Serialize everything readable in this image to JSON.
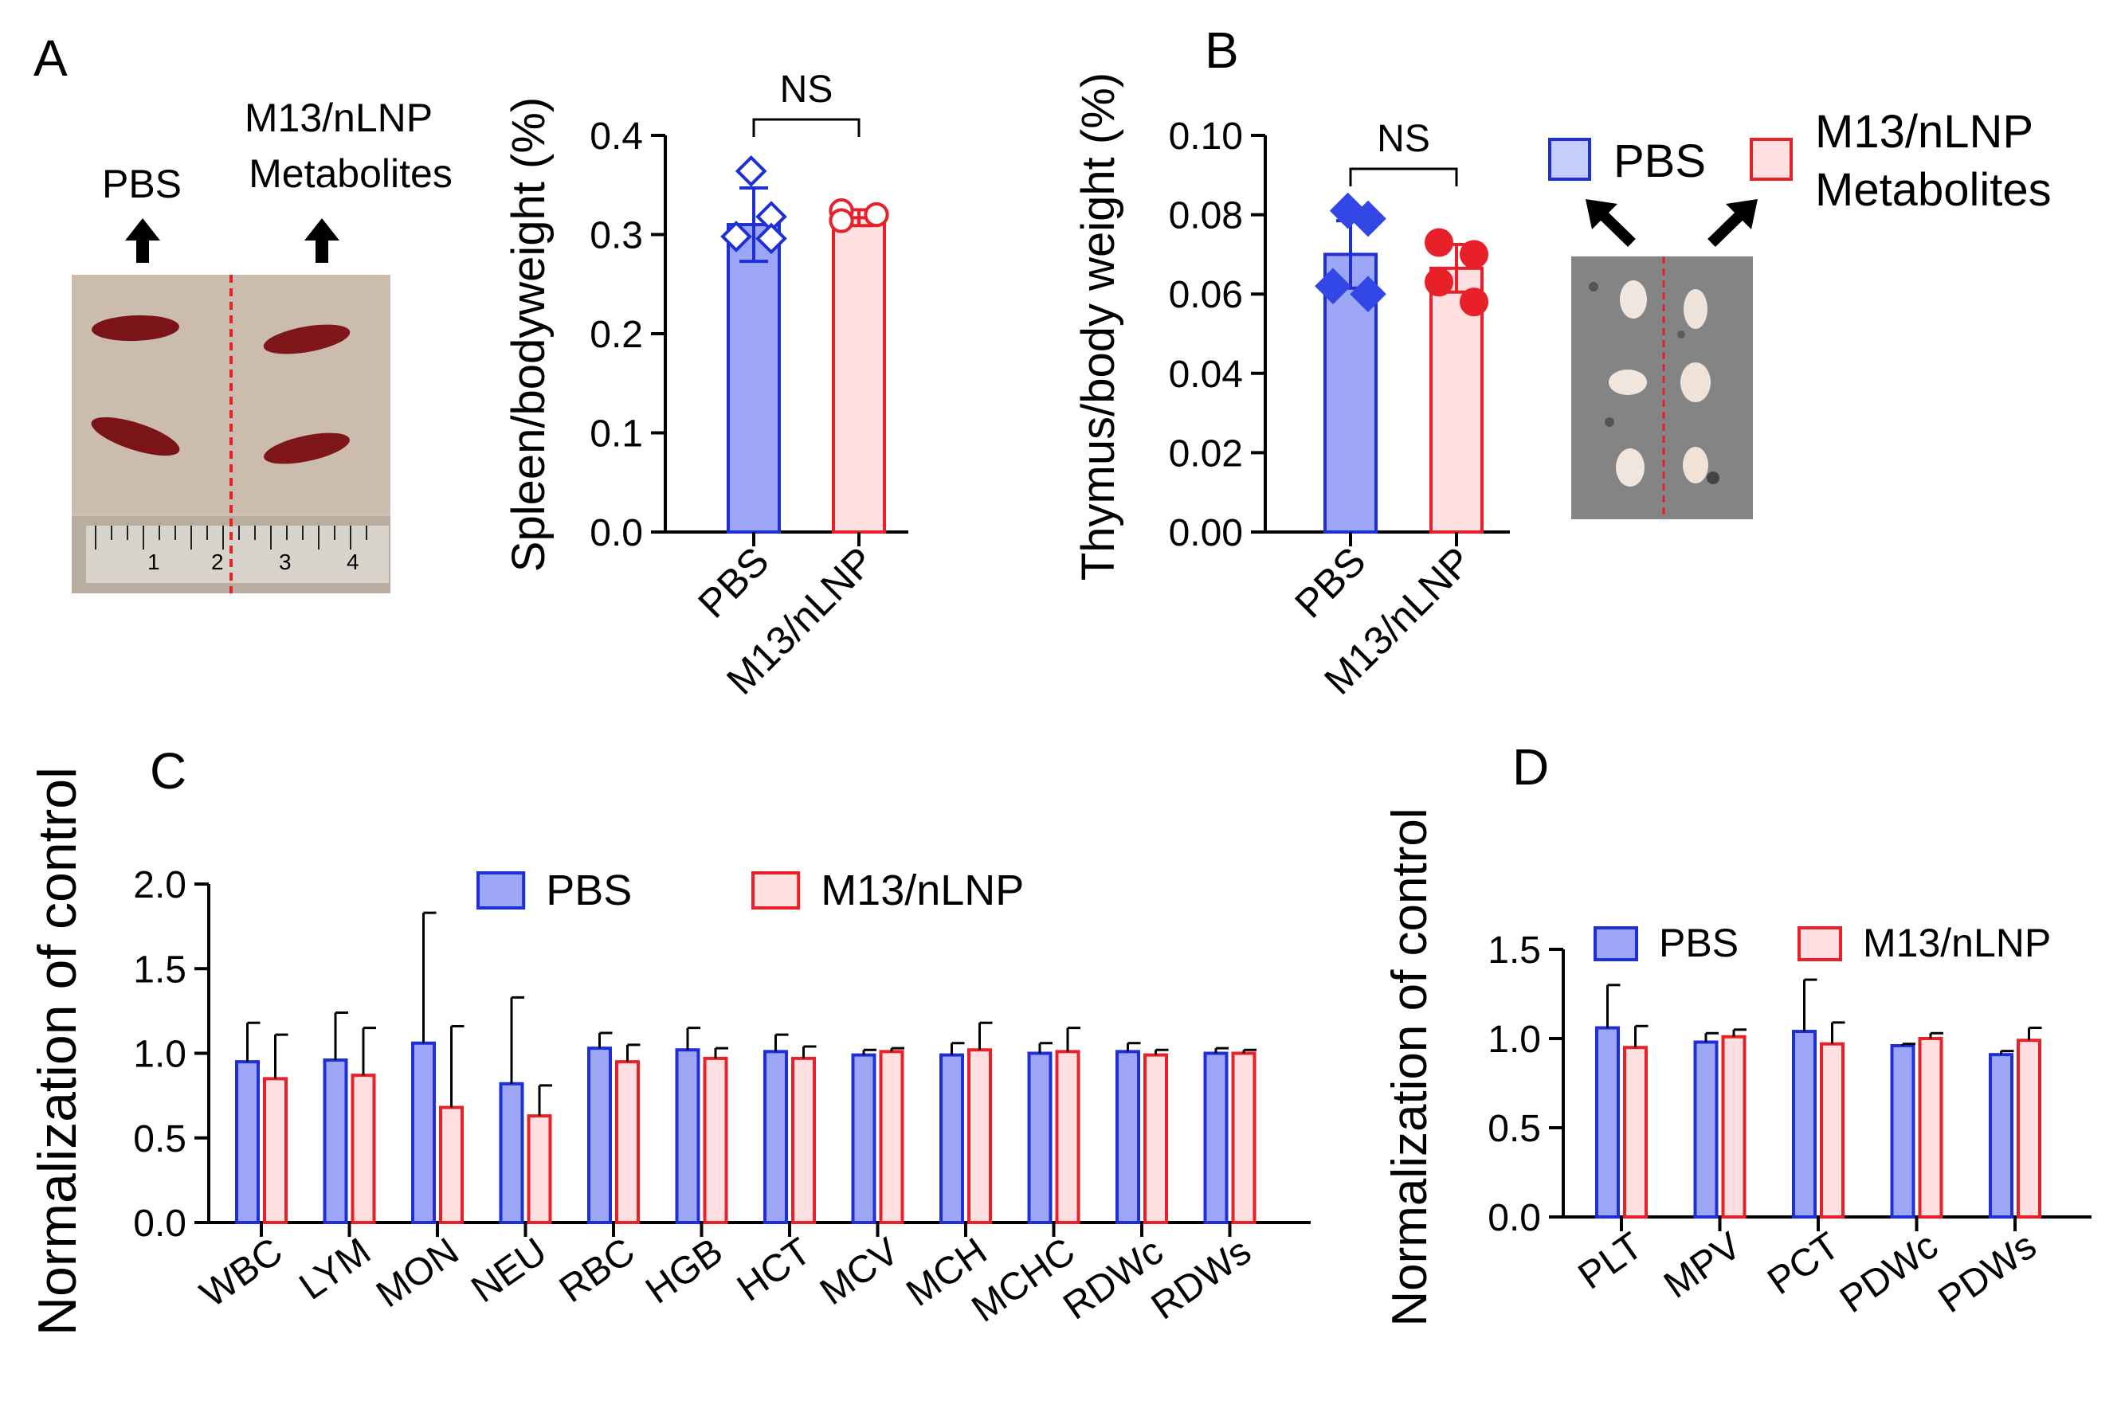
{
  "colors": {
    "pbs_fill": "#9da6f5",
    "pbs_stroke": "#1f2fd6",
    "m13_fill": "#ffe0e0",
    "m13_stroke": "#e8202a",
    "pbs_marker": "#3346e6",
    "m13_marker": "#e8202a",
    "divider": "#e8202a"
  },
  "panel_a": {
    "letter": "A",
    "photo_label_left": "PBS",
    "photo_label_right_1": "M13/nLNP",
    "photo_label_right_2": "Metabolites",
    "ruler_ticks": [
      "1",
      "2",
      "3",
      "4"
    ],
    "photo_icon": "spleen-photo"
  },
  "panel_b": {
    "letter": "B",
    "legend_pbs": "PBS",
    "legend_m13_1": "M13/nLNP",
    "legend_m13_2": "Metabolites",
    "photo_icon": "thymus-photo"
  },
  "panel_c": {
    "letter": "C"
  },
  "panel_d": {
    "letter": "D"
  },
  "chart_data": [
    {
      "id": "spleen",
      "type": "bar",
      "ylabel": "Spleen/bodyweight (%)",
      "categories": [
        "PBS",
        "M13/nLNP"
      ],
      "values": [
        0.31,
        0.317
      ],
      "sd": [
        0.037,
        0.008
      ],
      "points": [
        [
          0.364,
          0.318,
          0.298,
          0.296
        ],
        [
          0.324,
          0.32,
          0.314,
          0.32
        ]
      ],
      "markers": [
        "diamond",
        "circle"
      ],
      "ylim": [
        0,
        0.4
      ],
      "yticks": [
        "0.0",
        "0.1",
        "0.2",
        "0.3",
        "0.4"
      ],
      "significance": "NS"
    },
    {
      "id": "thymus",
      "type": "bar",
      "ylabel": "Thymus/body weight (%)",
      "categories": [
        "PBS",
        "M13/nLNP"
      ],
      "values": [
        0.07,
        0.0665
      ],
      "sd": [
        0.0085,
        0.006
      ],
      "points": [
        [
          0.081,
          0.079,
          0.062,
          0.06
        ],
        [
          0.073,
          0.07,
          0.063,
          0.058
        ]
      ],
      "markers": [
        "diamond",
        "circle"
      ],
      "ylim": [
        0,
        0.1
      ],
      "yticks": [
        "0.00",
        "0.02",
        "0.04",
        "0.06",
        "0.08",
        "0.10"
      ],
      "significance": "NS"
    },
    {
      "id": "blood",
      "type": "bar",
      "ylabel": "Normalization of control",
      "categories": [
        "WBC",
        "LYM",
        "MON",
        "NEU",
        "RBC",
        "HGB",
        "HCT",
        "MCV",
        "MCH",
        "MCHC",
        "RDWc",
        "RDWs"
      ],
      "series": [
        {
          "name": "PBS",
          "values": [
            0.95,
            0.96,
            1.06,
            0.82,
            1.03,
            1.02,
            1.01,
            0.99,
            0.99,
            1.0,
            1.01,
            1.0
          ],
          "sd": [
            0.23,
            0.28,
            0.77,
            0.51,
            0.09,
            0.13,
            0.1,
            0.03,
            0.07,
            0.06,
            0.05,
            0.03
          ]
        },
        {
          "name": "M13/nLNP",
          "values": [
            0.85,
            0.87,
            0.68,
            0.63,
            0.95,
            0.97,
            0.97,
            1.01,
            1.02,
            1.01,
            0.99,
            1.0
          ],
          "sd": [
            0.26,
            0.28,
            0.48,
            0.18,
            0.1,
            0.06,
            0.07,
            0.02,
            0.16,
            0.14,
            0.03,
            0.02
          ]
        }
      ],
      "ylim": [
        0,
        2.0
      ],
      "yticks": [
        "0.0",
        "0.5",
        "1.0",
        "1.5",
        "2.0"
      ],
      "legend": [
        "PBS",
        "M13/nLNP"
      ]
    },
    {
      "id": "platelet",
      "type": "bar",
      "ylabel": "Normalization of control",
      "categories": [
        "PLT",
        "MPV",
        "PCT",
        "PDWc",
        "PDWs"
      ],
      "series": [
        {
          "name": "PBS",
          "values": [
            1.06,
            0.98,
            1.04,
            0.96,
            0.91
          ],
          "sd": [
            0.24,
            0.05,
            0.29,
            0.01,
            0.02
          ]
        },
        {
          "name": "M13/nLNP",
          "values": [
            0.95,
            1.01,
            0.97,
            1.0,
            0.99
          ],
          "sd": [
            0.12,
            0.04,
            0.12,
            0.03,
            0.07
          ]
        }
      ],
      "ylim": [
        0,
        1.5
      ],
      "yticks": [
        "0.0",
        "0.5",
        "1.0",
        "1.5"
      ],
      "legend": [
        "PBS",
        "M13/nLNP"
      ]
    }
  ]
}
